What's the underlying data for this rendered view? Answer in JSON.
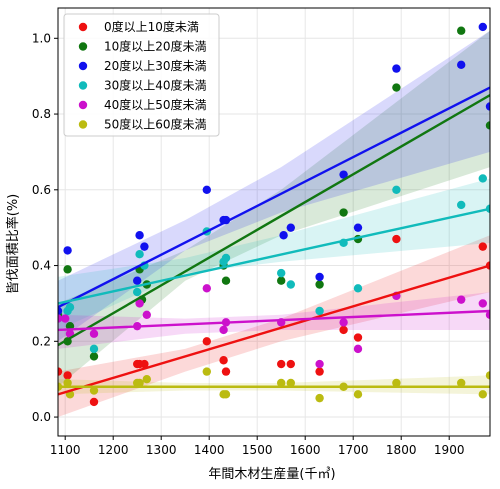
{
  "chart_data": {
    "type": "scatter",
    "xlabel": "年間木材生産量(千㎥)",
    "ylabel": "皆伐面積比率(%)",
    "xlim": [
      1085,
      1985
    ],
    "ylim": [
      -0.05,
      1.08
    ],
    "xticks": [
      1100,
      1200,
      1300,
      1400,
      1500,
      1600,
      1700,
      1800,
      1900
    ],
    "yticks": [
      0.0,
      0.2,
      0.4,
      0.6,
      0.8,
      1.0
    ],
    "xtick_labels": [
      "1100",
      "1200",
      "1300",
      "1400",
      "1500",
      "1600",
      "1700",
      "1800",
      "1900"
    ],
    "ytick_labels": [
      "0.0",
      "0.2",
      "0.4",
      "0.6",
      "0.8",
      "1.0"
    ],
    "legend_position": "top-left",
    "series": [
      {
        "name": "0度以上10度未満",
        "color": "#ee1111",
        "points": [
          [
            1085,
            0.12
          ],
          [
            1105,
            0.11
          ],
          [
            1160,
            0.04
          ],
          [
            1250,
            0.14
          ],
          [
            1255,
            0.14
          ],
          [
            1265,
            0.14
          ],
          [
            1395,
            0.2
          ],
          [
            1430,
            0.15
          ],
          [
            1435,
            0.12
          ],
          [
            1550,
            0.14
          ],
          [
            1570,
            0.14
          ],
          [
            1630,
            0.12
          ],
          [
            1680,
            0.23
          ],
          [
            1710,
            0.21
          ],
          [
            1790,
            0.47
          ],
          [
            1970,
            0.45
          ],
          [
            1985,
            0.4
          ]
        ],
        "fit": [
          [
            1085,
            0.06
          ],
          [
            1985,
            0.4
          ]
        ],
        "band_lo": [
          [
            1085,
            0.0
          ],
          [
            1350,
            0.12
          ],
          [
            1550,
            0.2
          ],
          [
            1985,
            0.33
          ]
        ],
        "band_hi": [
          [
            1085,
            0.12
          ],
          [
            1350,
            0.18
          ],
          [
            1550,
            0.26
          ],
          [
            1985,
            0.48
          ]
        ]
      },
      {
        "name": "10度以上20度未満",
        "color": "#117711",
        "points": [
          [
            1085,
            0.27
          ],
          [
            1105,
            0.39
          ],
          [
            1105,
            0.2
          ],
          [
            1110,
            0.24
          ],
          [
            1160,
            0.16
          ],
          [
            1255,
            0.39
          ],
          [
            1260,
            0.31
          ],
          [
            1270,
            0.35
          ],
          [
            1430,
            0.4
          ],
          [
            1435,
            0.36
          ],
          [
            1550,
            0.36
          ],
          [
            1630,
            0.35
          ],
          [
            1680,
            0.54
          ],
          [
            1710,
            0.47
          ],
          [
            1790,
            0.87
          ],
          [
            1925,
            1.02
          ],
          [
            1985,
            0.77
          ]
        ],
        "fit": [
          [
            1085,
            0.19
          ],
          [
            1985,
            0.85
          ]
        ],
        "band_lo": [
          [
            1085,
            0.08
          ],
          [
            1350,
            0.36
          ],
          [
            1550,
            0.48
          ],
          [
            1985,
            0.66
          ]
        ],
        "band_hi": [
          [
            1085,
            0.3
          ],
          [
            1350,
            0.44
          ],
          [
            1550,
            0.6
          ],
          [
            1985,
            1.02
          ]
        ]
      },
      {
        "name": "20度以上30度未満",
        "color": "#1111ee",
        "points": [
          [
            1085,
            0.28
          ],
          [
            1105,
            0.44
          ],
          [
            1250,
            0.36
          ],
          [
            1255,
            0.48
          ],
          [
            1265,
            0.45
          ],
          [
            1395,
            0.6
          ],
          [
            1430,
            0.52
          ],
          [
            1435,
            0.52
          ],
          [
            1555,
            0.48
          ],
          [
            1570,
            0.5
          ],
          [
            1630,
            0.37
          ],
          [
            1680,
            0.64
          ],
          [
            1710,
            0.5
          ],
          [
            1790,
            0.92
          ],
          [
            1925,
            0.93
          ],
          [
            1970,
            1.03
          ],
          [
            1985,
            0.82
          ]
        ],
        "fit": [
          [
            1085,
            0.29
          ],
          [
            1985,
            0.87
          ]
        ],
        "band_lo": [
          [
            1085,
            0.2
          ],
          [
            1350,
            0.44
          ],
          [
            1550,
            0.54
          ],
          [
            1985,
            0.7
          ]
        ],
        "band_hi": [
          [
            1085,
            0.36
          ],
          [
            1350,
            0.52
          ],
          [
            1550,
            0.66
          ],
          [
            1985,
            1.02
          ]
        ]
      },
      {
        "name": "30度以上40度未満",
        "color": "#11bbbb",
        "points": [
          [
            1085,
            0.26
          ],
          [
            1105,
            0.28
          ],
          [
            1110,
            0.29
          ],
          [
            1160,
            0.18
          ],
          [
            1250,
            0.33
          ],
          [
            1255,
            0.43
          ],
          [
            1265,
            0.4
          ],
          [
            1395,
            0.49
          ],
          [
            1430,
            0.41
          ],
          [
            1435,
            0.42
          ],
          [
            1550,
            0.38
          ],
          [
            1570,
            0.35
          ],
          [
            1630,
            0.28
          ],
          [
            1680,
            0.46
          ],
          [
            1710,
            0.34
          ],
          [
            1790,
            0.6
          ],
          [
            1925,
            0.56
          ],
          [
            1970,
            0.63
          ],
          [
            1985,
            0.55
          ]
        ],
        "fit": [
          [
            1085,
            0.3
          ],
          [
            1985,
            0.55
          ]
        ],
        "band_lo": [
          [
            1085,
            0.23
          ],
          [
            1350,
            0.38
          ],
          [
            1550,
            0.41
          ],
          [
            1985,
            0.46
          ]
        ],
        "band_hi": [
          [
            1085,
            0.37
          ],
          [
            1350,
            0.42
          ],
          [
            1550,
            0.48
          ],
          [
            1985,
            0.63
          ]
        ]
      },
      {
        "name": "40度以上50度未満",
        "color": "#cc11cc",
        "points": [
          [
            1085,
            0.26
          ],
          [
            1100,
            0.26
          ],
          [
            1110,
            0.22
          ],
          [
            1160,
            0.22
          ],
          [
            1250,
            0.24
          ],
          [
            1255,
            0.3
          ],
          [
            1270,
            0.27
          ],
          [
            1395,
            0.34
          ],
          [
            1430,
            0.23
          ],
          [
            1435,
            0.25
          ],
          [
            1550,
            0.25
          ],
          [
            1630,
            0.14
          ],
          [
            1680,
            0.25
          ],
          [
            1710,
            0.18
          ],
          [
            1790,
            0.32
          ],
          [
            1925,
            0.31
          ],
          [
            1970,
            0.3
          ],
          [
            1985,
            0.27
          ]
        ],
        "fit": [
          [
            1085,
            0.23
          ],
          [
            1985,
            0.28
          ]
        ],
        "band_lo": [
          [
            1085,
            0.18
          ],
          [
            1350,
            0.22
          ],
          [
            1550,
            0.23
          ],
          [
            1985,
            0.23
          ]
        ],
        "band_hi": [
          [
            1085,
            0.27
          ],
          [
            1350,
            0.26
          ],
          [
            1550,
            0.27
          ],
          [
            1985,
            0.33
          ]
        ]
      },
      {
        "name": "50度以上60度未満",
        "color": "#bbbb11",
        "points": [
          [
            1085,
            0.08
          ],
          [
            1105,
            0.09
          ],
          [
            1110,
            0.06
          ],
          [
            1160,
            0.07
          ],
          [
            1250,
            0.09
          ],
          [
            1255,
            0.09
          ],
          [
            1270,
            0.1
          ],
          [
            1395,
            0.12
          ],
          [
            1430,
            0.06
          ],
          [
            1435,
            0.06
          ],
          [
            1550,
            0.09
          ],
          [
            1570,
            0.09
          ],
          [
            1630,
            0.05
          ],
          [
            1680,
            0.08
          ],
          [
            1710,
            0.06
          ],
          [
            1790,
            0.09
          ],
          [
            1925,
            0.09
          ],
          [
            1970,
            0.06
          ],
          [
            1985,
            0.11
          ]
        ],
        "fit": [
          [
            1085,
            0.08
          ],
          [
            1985,
            0.08
          ]
        ],
        "band_lo": [
          [
            1085,
            0.06
          ],
          [
            1350,
            0.07
          ],
          [
            1550,
            0.07
          ],
          [
            1985,
            0.06
          ]
        ],
        "band_hi": [
          [
            1085,
            0.1
          ],
          [
            1350,
            0.09
          ],
          [
            1550,
            0.09
          ],
          [
            1985,
            0.11
          ]
        ]
      }
    ]
  }
}
